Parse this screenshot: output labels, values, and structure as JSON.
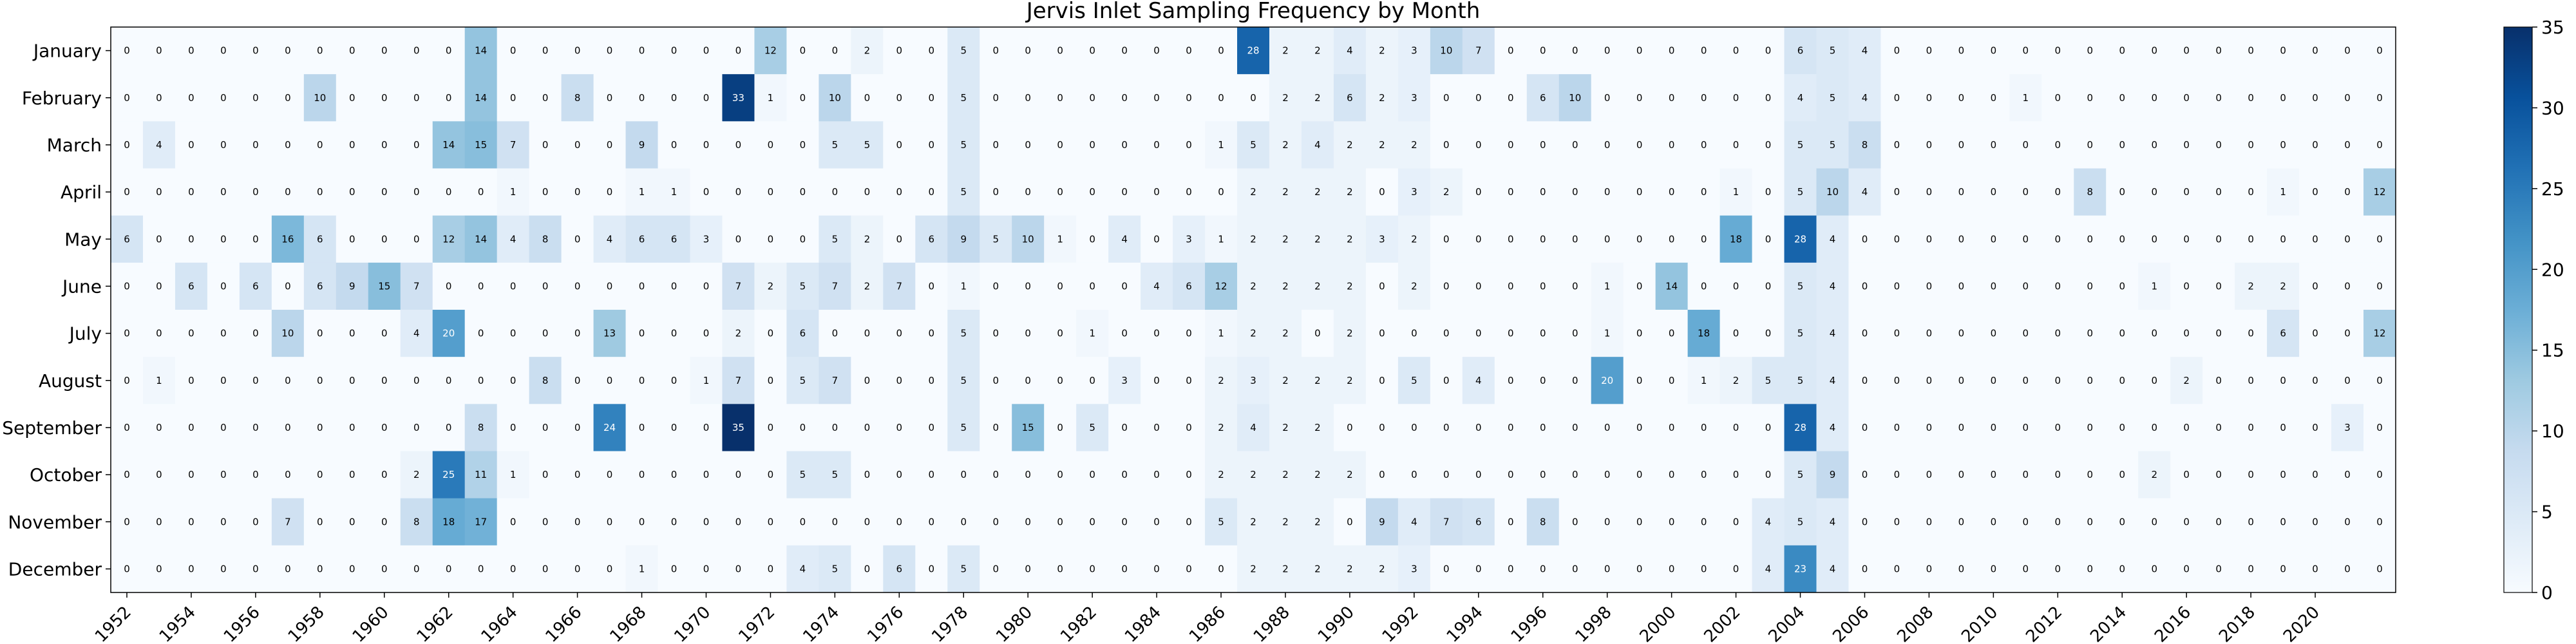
{
  "chart_data": {
    "type": "heatmap",
    "title": "Jervis Inlet Sampling Frequency by Month",
    "xlabel": "",
    "ylabel": "",
    "x_tick_labels": [
      "1952",
      "1954",
      "1956",
      "1958",
      "1960",
      "1962",
      "1964",
      "1966",
      "1968",
      "1970",
      "1972",
      "1974",
      "1976",
      "1978",
      "1980",
      "1982",
      "1984",
      "1986",
      "1988",
      "1990",
      "1992",
      "1994",
      "1996",
      "1998",
      "2000",
      "2002",
      "2004",
      "2006",
      "2008",
      "2010",
      "2012",
      "2014",
      "2016",
      "2018",
      "2020"
    ],
    "rows": [
      "January",
      "February",
      "March",
      "April",
      "May",
      "June",
      "July",
      "August",
      "September",
      "October",
      "November",
      "December"
    ],
    "values": [
      [
        0,
        0,
        0,
        0,
        0,
        0,
        0,
        0,
        0,
        0,
        0,
        14,
        0,
        0,
        0,
        0,
        0,
        0,
        0,
        0,
        12,
        0,
        0,
        2,
        0,
        0,
        5,
        0,
        0,
        0,
        0,
        0,
        0,
        0,
        0,
        28,
        2,
        2,
        4,
        2,
        3,
        10,
        7,
        0,
        0,
        0,
        0,
        0,
        0,
        0,
        0,
        0,
        6,
        5,
        4,
        0,
        0,
        0,
        0,
        0,
        0,
        0,
        0,
        0,
        0,
        0,
        0,
        0,
        0,
        0,
        0
      ],
      [
        0,
        0,
        0,
        0,
        0,
        0,
        10,
        0,
        0,
        0,
        0,
        14,
        0,
        0,
        8,
        0,
        0,
        0,
        0,
        33,
        1,
        0,
        10,
        0,
        0,
        0,
        5,
        0,
        0,
        0,
        0,
        0,
        0,
        0,
        0,
        0,
        2,
        2,
        6,
        2,
        3,
        0,
        0,
        0,
        6,
        10,
        0,
        0,
        0,
        0,
        0,
        0,
        4,
        5,
        4,
        0,
        0,
        0,
        0,
        1,
        0,
        0,
        0,
        0,
        0,
        0,
        0,
        0,
        0,
        0,
        0
      ],
      [
        0,
        4,
        0,
        0,
        0,
        0,
        0,
        0,
        0,
        0,
        14,
        15,
        7,
        0,
        0,
        0,
        9,
        0,
        0,
        0,
        0,
        0,
        5,
        5,
        0,
        0,
        5,
        0,
        0,
        0,
        0,
        0,
        0,
        0,
        1,
        5,
        2,
        4,
        2,
        2,
        2,
        0,
        0,
        0,
        0,
        0,
        0,
        0,
        0,
        0,
        0,
        0,
        5,
        5,
        8,
        0,
        0,
        0,
        0,
        0,
        0,
        0,
        0,
        0,
        0,
        0,
        0,
        0,
        0,
        0,
        0
      ],
      [
        0,
        0,
        0,
        0,
        0,
        0,
        0,
        0,
        0,
        0,
        0,
        0,
        1,
        0,
        0,
        0,
        1,
        1,
        0,
        0,
        0,
        0,
        0,
        0,
        0,
        0,
        5,
        0,
        0,
        0,
        0,
        0,
        0,
        0,
        0,
        2,
        2,
        2,
        2,
        0,
        3,
        2,
        0,
        0,
        0,
        0,
        0,
        0,
        0,
        0,
        1,
        0,
        5,
        10,
        4,
        0,
        0,
        0,
        0,
        0,
        0,
        8,
        0,
        0,
        0,
        0,
        0,
        1,
        0,
        0,
        12
      ],
      [
        6,
        0,
        0,
        0,
        0,
        16,
        6,
        0,
        0,
        0,
        12,
        14,
        4,
        8,
        0,
        4,
        6,
        6,
        3,
        0,
        0,
        0,
        5,
        2,
        0,
        6,
        9,
        5,
        10,
        1,
        0,
        4,
        0,
        3,
        1,
        2,
        2,
        2,
        2,
        3,
        2,
        0,
        0,
        0,
        0,
        0,
        0,
        0,
        0,
        0,
        18,
        0,
        28,
        4,
        0,
        0,
        0,
        0,
        0,
        0,
        0,
        0,
        0,
        0,
        0,
        0,
        0,
        0,
        0,
        0,
        0
      ],
      [
        0,
        0,
        6,
        0,
        6,
        0,
        6,
        9,
        15,
        7,
        0,
        0,
        0,
        0,
        0,
        0,
        0,
        0,
        0,
        7,
        2,
        5,
        7,
        2,
        7,
        0,
        1,
        0,
        0,
        0,
        0,
        0,
        4,
        6,
        12,
        2,
        2,
        2,
        2,
        0,
        2,
        0,
        0,
        0,
        0,
        0,
        1,
        0,
        14,
        0,
        0,
        0,
        5,
        4,
        0,
        0,
        0,
        0,
        0,
        0,
        0,
        0,
        0,
        1,
        0,
        0,
        2,
        2,
        0,
        0,
        0
      ],
      [
        0,
        0,
        0,
        0,
        0,
        10,
        0,
        0,
        0,
        4,
        20,
        0,
        0,
        0,
        0,
        13,
        0,
        0,
        0,
        2,
        0,
        6,
        0,
        0,
        0,
        0,
        5,
        0,
        0,
        0,
        1,
        0,
        0,
        0,
        1,
        2,
        2,
        0,
        2,
        0,
        0,
        0,
        0,
        0,
        0,
        0,
        1,
        0,
        0,
        18,
        0,
        0,
        5,
        4,
        0,
        0,
        0,
        0,
        0,
        0,
        0,
        0,
        0,
        0,
        0,
        0,
        0,
        6,
        0,
        0,
        12
      ],
      [
        0,
        1,
        0,
        0,
        0,
        0,
        0,
        0,
        0,
        0,
        0,
        0,
        0,
        8,
        0,
        0,
        0,
        0,
        1,
        7,
        0,
        5,
        7,
        0,
        0,
        0,
        5,
        0,
        0,
        0,
        0,
        3,
        0,
        0,
        2,
        3,
        2,
        2,
        2,
        0,
        5,
        0,
        4,
        0,
        0,
        0,
        20,
        0,
        0,
        1,
        2,
        5,
        5,
        4,
        0,
        0,
        0,
        0,
        0,
        0,
        0,
        0,
        0,
        0,
        2,
        0,
        0,
        0,
        0,
        0,
        0
      ],
      [
        0,
        0,
        0,
        0,
        0,
        0,
        0,
        0,
        0,
        0,
        0,
        8,
        0,
        0,
        0,
        24,
        0,
        0,
        0,
        35,
        0,
        0,
        0,
        0,
        0,
        0,
        5,
        0,
        15,
        0,
        5,
        0,
        0,
        0,
        2,
        4,
        2,
        2,
        0,
        0,
        0,
        0,
        0,
        0,
        0,
        0,
        0,
        0,
        0,
        0,
        0,
        0,
        28,
        4,
        0,
        0,
        0,
        0,
        0,
        0,
        0,
        0,
        0,
        0,
        0,
        0,
        0,
        0,
        0,
        3,
        0
      ],
      [
        0,
        0,
        0,
        0,
        0,
        0,
        0,
        0,
        0,
        2,
        25,
        11,
        1,
        0,
        0,
        0,
        0,
        0,
        0,
        0,
        0,
        5,
        5,
        0,
        0,
        0,
        0,
        0,
        0,
        0,
        0,
        0,
        0,
        0,
        2,
        2,
        2,
        2,
        2,
        0,
        0,
        0,
        0,
        0,
        0,
        0,
        0,
        0,
        0,
        0,
        0,
        0,
        5,
        9,
        0,
        0,
        0,
        0,
        0,
        0,
        0,
        0,
        0,
        2,
        0,
        0,
        0,
        0,
        0,
        0,
        0
      ],
      [
        0,
        0,
        0,
        0,
        0,
        7,
        0,
        0,
        0,
        8,
        18,
        17,
        0,
        0,
        0,
        0,
        0,
        0,
        0,
        0,
        0,
        0,
        0,
        0,
        0,
        0,
        0,
        0,
        0,
        0,
        0,
        0,
        0,
        0,
        5,
        2,
        2,
        2,
        0,
        9,
        4,
        7,
        6,
        0,
        8,
        0,
        0,
        0,
        0,
        0,
        0,
        4,
        5,
        4,
        0,
        0,
        0,
        0,
        0,
        0,
        0,
        0,
        0,
        0,
        0,
        0,
        0,
        0,
        0,
        0,
        0
      ],
      [
        0,
        0,
        0,
        0,
        0,
        0,
        0,
        0,
        0,
        0,
        0,
        0,
        0,
        0,
        0,
        0,
        1,
        0,
        0,
        0,
        0,
        4,
        5,
        0,
        6,
        0,
        5,
        0,
        0,
        0,
        0,
        0,
        0,
        0,
        0,
        2,
        2,
        2,
        2,
        2,
        3,
        0,
        0,
        0,
        0,
        0,
        0,
        0,
        0,
        0,
        0,
        4,
        23,
        4,
        0,
        0,
        0,
        0,
        0,
        0,
        0,
        0,
        0,
        0,
        0,
        0,
        0,
        0,
        0,
        0,
        0
      ]
    ],
    "colorbar": {
      "min": 0,
      "max": 35,
      "ticks": [
        0,
        5,
        10,
        15,
        20,
        25,
        30,
        35
      ],
      "colormap": "Blues",
      "low_color": "#f7fbff",
      "high_color": "#08306b"
    },
    "grid": false
  }
}
